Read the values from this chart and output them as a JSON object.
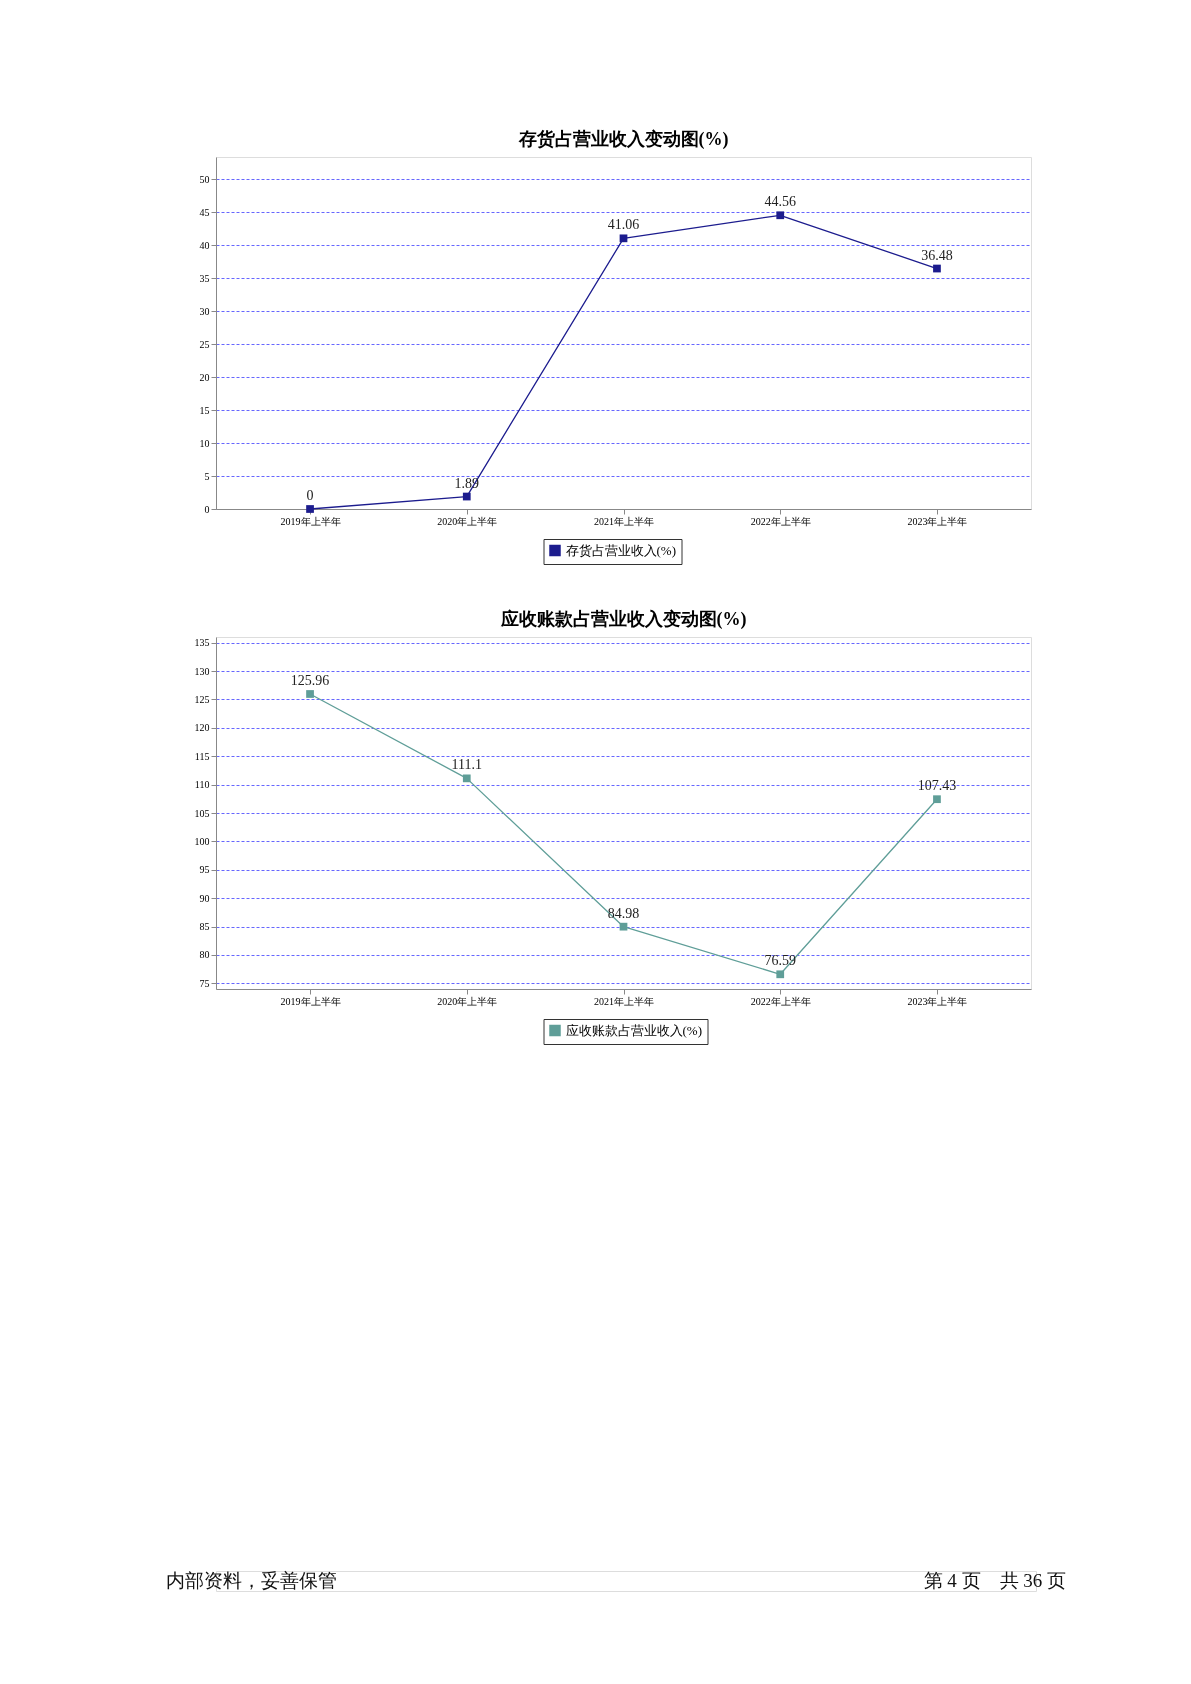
{
  "chart_data": [
    {
      "type": "line",
      "title": "存货占营业收入变动图(%)",
      "categories": [
        "2019年上半年",
        "2020年上半年",
        "2021年上半年",
        "2022年上半年",
        "2023年上半年"
      ],
      "series": [
        {
          "name": "存货占营业收入(%)",
          "color": "#1c1c8e",
          "values": [
            0,
            1.89,
            41.06,
            44.56,
            36.48
          ]
        }
      ],
      "ylim": [
        0,
        53.4
      ],
      "yticks": [
        0,
        5,
        10,
        15,
        20,
        25,
        30,
        35,
        40,
        45,
        50
      ],
      "grid": "y",
      "legend": "bottom",
      "marker": "square",
      "line_style": "solid",
      "data_labels": true
    },
    {
      "type": "line",
      "title": "应收账款占营业收入变动图(%)",
      "categories": [
        "2019年上半年",
        "2020年上半年",
        "2021年上半年",
        "2022年上半年",
        "2023年上半年"
      ],
      "series": [
        {
          "name": "应收账款占营业收入(%)",
          "color": "#5f9e98",
          "values": [
            125.96,
            111.1,
            84.98,
            76.59,
            107.43
          ]
        }
      ],
      "ylim": [
        74,
        136
      ],
      "yticks": [
        75,
        80,
        85,
        90,
        95,
        100,
        105,
        110,
        115,
        120,
        125,
        130,
        135
      ],
      "grid": "y",
      "legend": "bottom",
      "marker": "square",
      "line_style": "solid",
      "data_labels": true
    },
    {
      "type": "other",
      "annotations": [
        "内部资料，妥善保管",
        "第 4 页　共 36 页"
      ]
    }
  ]
}
